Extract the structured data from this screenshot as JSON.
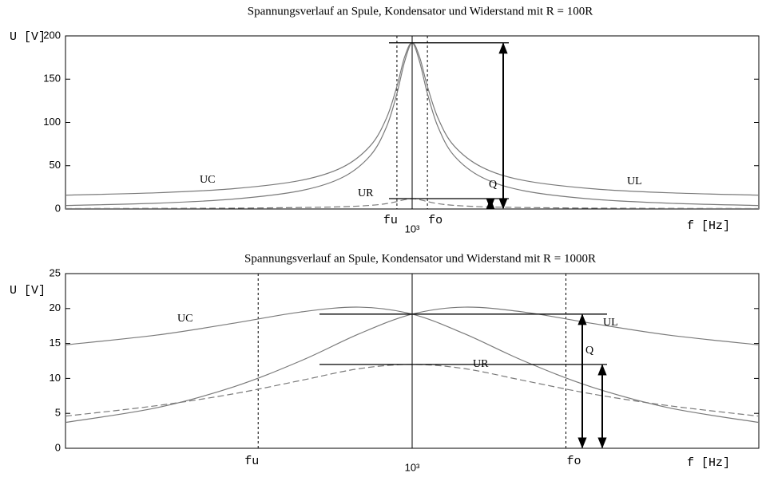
{
  "chart_data": [
    {
      "type": "line",
      "title": "Spannungsverlauf an Spule, Kondensator und Widerstand mit R = 100R",
      "ylabel": "U [V]",
      "xlabel": "f [Hz]",
      "xscale": "log",
      "xlim": [
        500,
        2000
      ],
      "ylim": [
        0,
        200
      ],
      "yticks": [
        0,
        50,
        100,
        150,
        200
      ],
      "xticks": [
        {
          "value": 1000,
          "label": "10³"
        }
      ],
      "x": [
        500,
        600,
        700,
        800,
        870,
        920,
        950,
        970,
        985,
        1000,
        1015,
        1031,
        1053,
        1087,
        1150,
        1250,
        1430,
        1670,
        2000
      ],
      "series": [
        {
          "name": "UC",
          "color": "#7a7a7a",
          "line_style": "solid",
          "values": [
            16.0,
            18.7,
            23.5,
            33.0,
            48.2,
            73.2,
            105.1,
            141.7,
            175.5,
            192,
            170.2,
            133.4,
            94.9,
            61.9,
            36.5,
            21.1,
            11.5,
            6.7,
            4.0
          ]
        },
        {
          "name": "UL",
          "color": "#7a7a7a",
          "line_style": "solid",
          "values": [
            4.0,
            6.7,
            11.5,
            21.1,
            36.5,
            61.9,
            94.9,
            133.4,
            170.2,
            192,
            175.5,
            141.7,
            105.1,
            73.2,
            48.2,
            33.0,
            23.5,
            18.7,
            16.0
          ]
        },
        {
          "name": "UR",
          "color": "#7a7a7a",
          "line_style": "dashed",
          "values": [
            0.5,
            0.7,
            1.0,
            1.7,
            2.6,
            4.2,
            6.2,
            8.6,
            10.8,
            12,
            10.8,
            8.6,
            6.2,
            4.2,
            2.6,
            1.7,
            1.0,
            0.7,
            0.5
          ]
        }
      ],
      "band": [
        {
          "label": "fu",
          "value": 970
        },
        {
          "label": "fo",
          "value": 1031
        }
      ],
      "annotation": "Q"
    },
    {
      "type": "line",
      "title": "Spannungsverlauf an Spule, Kondensator und Widerstand mit R = 1000R",
      "ylabel": "U [V]",
      "xlabel": "f [Hz]",
      "xscale": "log",
      "xlim": [
        500,
        2000
      ],
      "ylim": [
        0,
        25
      ],
      "yticks": [
        0,
        5,
        10,
        15,
        20,
        25
      ],
      "xticks": [
        {
          "value": 1000,
          "label": "10³"
        }
      ],
      "x": [
        500,
        600,
        700,
        800,
        900,
        1000,
        1110,
        1250,
        1430,
        1670,
        2000
      ],
      "series": [
        {
          "name": "UC",
          "color": "#7a7a7a",
          "line_style": "solid",
          "values": [
            14.8,
            16.2,
            17.9,
            19.5,
            20.2,
            19.2,
            16.4,
            12.5,
            8.8,
            5.8,
            3.7
          ]
        },
        {
          "name": "UL",
          "color": "#7a7a7a",
          "line_style": "solid",
          "values": [
            3.7,
            5.8,
            8.8,
            12.5,
            16.4,
            19.2,
            20.2,
            19.5,
            17.9,
            16.2,
            14.8
          ]
        },
        {
          "name": "UR",
          "color": "#7a7a7a",
          "line_style": "dashed",
          "values": [
            4.6,
            6.1,
            7.8,
            9.7,
            11.4,
            12,
            11.4,
            9.7,
            7.8,
            6.1,
            4.6
          ]
        }
      ],
      "band": [
        {
          "label": "fu",
          "value": 735
        },
        {
          "label": "fo",
          "value": 1360
        }
      ],
      "annotation": "Q"
    }
  ]
}
